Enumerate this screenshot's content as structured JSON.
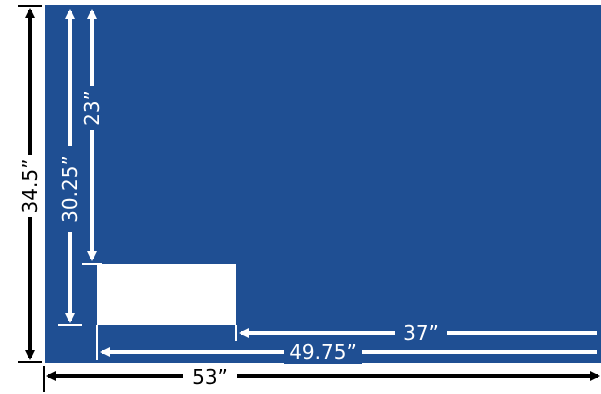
{
  "colors": {
    "panel_fill": "#1f4f93",
    "background": "#ffffff",
    "outer_dimension_line": "#000000",
    "inner_dimension_line": "#ffffff",
    "cutout_fill": "#ffffff"
  },
  "dimensions": {
    "overall_height": "34.5”",
    "overall_width": "53”",
    "cutout_top_from_top": "30.25”",
    "cutout_bottom_from_top": "23”",
    "cutout_right_to_edge": "37”",
    "cutout_left_to_edge": "49.75”"
  }
}
